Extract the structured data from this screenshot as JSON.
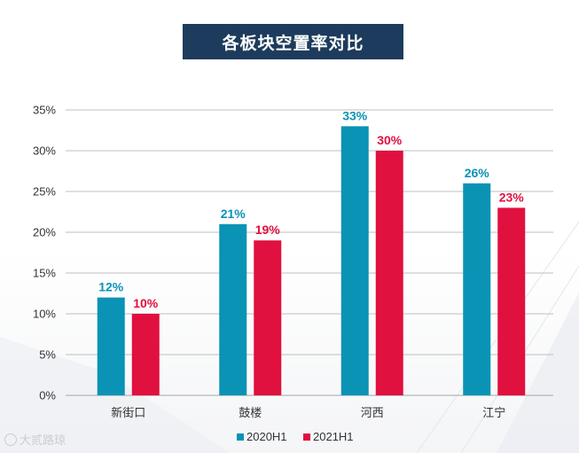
{
  "title": "各板块空置率对比",
  "watermark": "大贰路琼",
  "colors": {
    "series_2020": "#0a93b5",
    "series_2021": "#e0103f",
    "grid": "#bfbfbf",
    "axis_text": "#333333"
  },
  "chart_data": {
    "type": "bar",
    "categories": [
      "新街口",
      "鼓楼",
      "河西",
      "江宁"
    ],
    "series": [
      {
        "name": "2020H1",
        "values": [
          12,
          21,
          33,
          26
        ],
        "labels": [
          "12%",
          "21%",
          "33%",
          "26%"
        ]
      },
      {
        "name": "2021H1",
        "values": [
          10,
          19,
          30,
          23
        ],
        "labels": [
          "10%",
          "19%",
          "30%",
          "23%"
        ]
      }
    ],
    "ylim": [
      0,
      35
    ],
    "yticks": [
      "0%",
      "5%",
      "10%",
      "15%",
      "20%",
      "25%",
      "30%",
      "35%"
    ],
    "grid": true,
    "legend_position": "bottom"
  }
}
